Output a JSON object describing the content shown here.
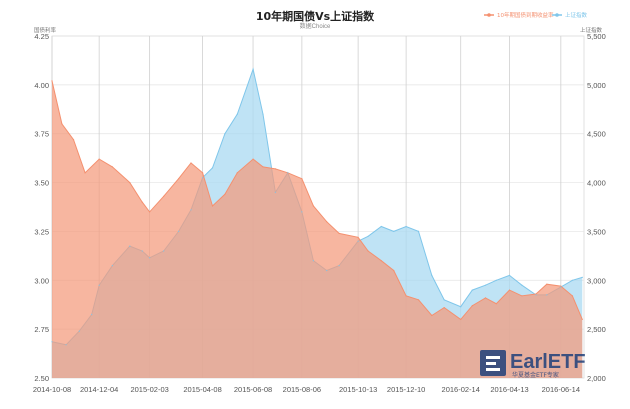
{
  "chart_data": {
    "type": "area",
    "title": "10年期国债Vs上证指数",
    "subtitle": "数据Choice",
    "left_axis_label": "国债利率",
    "right_axis_label": "上证指数",
    "y_left_ticks": [
      "4.25",
      "4.00",
      "3.75",
      "3.50",
      "3.25",
      "3.00",
      "2.75",
      "2.50"
    ],
    "y_right_ticks": [
      "5,500",
      "5,000",
      "4,500",
      "4,000",
      "3,500",
      "3,000",
      "2,500",
      "2,000"
    ],
    "y_left_lim": [
      2.5,
      4.25
    ],
    "y_right_lim": [
      2000,
      5500
    ],
    "x_ticks": [
      "2014-10-08",
      "2014-12-04",
      "2015-02-03",
      "2015-04-08",
      "2015-06-08",
      "2015-08-06",
      "2015-10-13",
      "2015-12-10",
      "2016-02-14",
      "2016-04-13",
      "2016-06-14"
    ],
    "grid": true,
    "legend_position": "top-right",
    "colors": {
      "bond": "#f4906f",
      "bond_fill": "#f49a7c",
      "index": "#7fc6ea",
      "index_fill": "#a9d9f1"
    },
    "series": [
      {
        "name": "10年期国债到期收益率",
        "axis": "left",
        "x": [
          "2014-10-08",
          "2014-10-20",
          "2014-11-03",
          "2014-11-17",
          "2014-12-04",
          "2014-12-20",
          "2015-01-10",
          "2015-01-25",
          "2015-02-03",
          "2015-02-20",
          "2015-03-10",
          "2015-03-25",
          "2015-04-08",
          "2015-04-20",
          "2015-05-05",
          "2015-05-20",
          "2015-06-08",
          "2015-06-20",
          "2015-07-05",
          "2015-07-20",
          "2015-08-06",
          "2015-08-20",
          "2015-09-05",
          "2015-09-20",
          "2015-10-13",
          "2015-10-25",
          "2015-11-10",
          "2015-11-25",
          "2015-12-10",
          "2015-12-25",
          "2016-01-10",
          "2016-01-25",
          "2016-02-14",
          "2016-02-28",
          "2016-03-15",
          "2016-03-28",
          "2016-04-13",
          "2016-04-28",
          "2016-05-15",
          "2016-05-28",
          "2016-06-14",
          "2016-06-28",
          "2016-07-10"
        ],
        "values": [
          4.02,
          3.8,
          3.72,
          3.55,
          3.62,
          3.58,
          3.5,
          3.4,
          3.35,
          3.43,
          3.52,
          3.6,
          3.55,
          3.38,
          3.44,
          3.55,
          3.62,
          3.58,
          3.57,
          3.55,
          3.52,
          3.38,
          3.3,
          3.24,
          3.22,
          3.15,
          3.1,
          3.05,
          2.92,
          2.9,
          2.82,
          2.86,
          2.8,
          2.87,
          2.91,
          2.88,
          2.95,
          2.92,
          2.93,
          2.98,
          2.97,
          2.92,
          2.8
        ]
      },
      {
        "name": "上证指数",
        "axis": "right",
        "x": [
          "2014-10-08",
          "2014-10-25",
          "2014-11-10",
          "2014-11-25",
          "2014-12-04",
          "2014-12-20",
          "2015-01-10",
          "2015-01-25",
          "2015-02-03",
          "2015-02-20",
          "2015-03-10",
          "2015-03-25",
          "2015-04-08",
          "2015-04-20",
          "2015-05-05",
          "2015-05-20",
          "2015-06-08",
          "2015-06-20",
          "2015-07-05",
          "2015-07-20",
          "2015-08-06",
          "2015-08-20",
          "2015-09-05",
          "2015-09-20",
          "2015-10-13",
          "2015-10-25",
          "2015-11-10",
          "2015-11-25",
          "2015-12-10",
          "2015-12-25",
          "2016-01-10",
          "2016-01-25",
          "2016-02-14",
          "2016-02-28",
          "2016-03-15",
          "2016-03-28",
          "2016-04-13",
          "2016-04-28",
          "2016-05-15",
          "2016-05-28",
          "2016-06-14",
          "2016-06-28",
          "2016-07-10"
        ],
        "values": [
          2370,
          2340,
          2480,
          2650,
          2950,
          3150,
          3350,
          3300,
          3230,
          3300,
          3500,
          3720,
          4050,
          4150,
          4500,
          4700,
          5160,
          4700,
          3900,
          4100,
          3700,
          3200,
          3100,
          3150,
          3400,
          3450,
          3550,
          3500,
          3550,
          3500,
          3050,
          2800,
          2730,
          2900,
          2950,
          3000,
          3050,
          2950,
          2850,
          2850,
          2930,
          3000,
          3030
        ]
      }
    ],
    "watermark": {
      "brand": "EarlETF",
      "tagline": "华夏基金ETF专家"
    }
  }
}
